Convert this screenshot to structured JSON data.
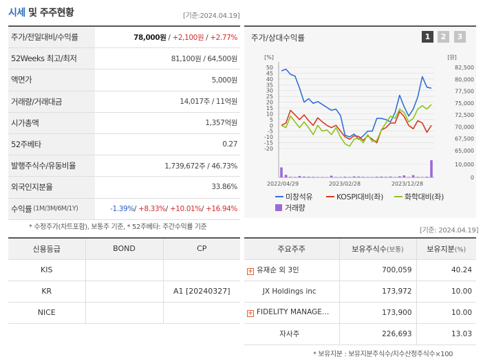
{
  "header": {
    "title_main": "시세",
    "title_rest": " 및 주주현황",
    "base_date": "[기준:2024.04.19]"
  },
  "quote": {
    "rows": [
      {
        "key": "주가/전일대비/수익률",
        "sub": "",
        "price": "78,000원",
        "sep1": " / ",
        "change": "+2,100원",
        "sep2": " / ",
        "pct": "+2.77%"
      },
      {
        "key": "52Weeks 최고/최저",
        "sub": "",
        "value": "81,100원 / 64,500원"
      },
      {
        "key": "액면가",
        "sub": "",
        "value": "5,000원"
      },
      {
        "key": "거래량/거래대금",
        "sub": "",
        "value": "14,017주 / 11억원"
      },
      {
        "key": "시가총액",
        "sub": "",
        "value": "1,357억원"
      },
      {
        "key": "52주베타",
        "sub": "",
        "value": "0.27"
      },
      {
        "key": "발행주식수/유동비율",
        "sub": "",
        "value": "1,739,672주 / 46.73%"
      },
      {
        "key": "외국인지분율",
        "sub": "",
        "value": "33.86%"
      }
    ],
    "returns": {
      "key": "수익률",
      "sub": "(1M/3M/6M/1Y)",
      "v1": "-1.39%",
      "v2": "+8.33%",
      "v3": "+10.01%",
      "v4": "+16.94%",
      "sep": "/ "
    },
    "note": "* 수정주가(차트포함), 보통주 기준, * 52주베타: 주간수익률 기준"
  },
  "chart": {
    "title": "주가/상대수익률",
    "buttons": [
      "1",
      "2",
      "3"
    ],
    "left_unit": "[%]",
    "right_unit": "[원]",
    "legend": {
      "s1": "미창석유",
      "s2": "KOSPI대비(좌)",
      "s3": "화학대비(좌)",
      "s4": "거래량"
    },
    "colors": {
      "s1": "#2f6fd6",
      "s2": "#d23a1f",
      "s3": "#8cc41a",
      "volume": "#9b6ad6",
      "grid": "#dcdcdc"
    }
  },
  "chart_data": {
    "type": "line",
    "x_labels": [
      "2022/04/29",
      "2023/02/28",
      "2023/12/28"
    ],
    "y_left": {
      "label": "[%]",
      "ticks": [
        "50",
        "45",
        "40",
        "35",
        "30",
        "25",
        "20",
        "15",
        "10",
        "5",
        "0",
        "-5",
        "-10",
        "-15",
        "-20"
      ],
      "range": [
        -20,
        50
      ]
    },
    "y_right": {
      "label": "[원]",
      "ticks": [
        "82,500",
        "80,000",
        "77,500",
        "75,000",
        "72,500",
        "70,000",
        "67,500",
        "65,000"
      ],
      "range": [
        65000,
        82500
      ]
    },
    "volume_axis": {
      "ticks": [
        "10,000",
        "0"
      ],
      "range": [
        0,
        12000
      ]
    },
    "series": [
      {
        "name": "미창석유",
        "values": [
          47,
          48.5,
          44,
          42.5,
          32,
          20,
          23,
          19,
          20.5,
          18,
          15.5,
          13,
          14,
          8.5,
          -8.5,
          -10,
          -7.5,
          -12,
          -9,
          -5,
          -5,
          6,
          6,
          5,
          3,
          11,
          26,
          16,
          8,
          14,
          24.5,
          42,
          33,
          32
        ]
      },
      {
        "name": "KOSPI대비(좌)",
        "values": [
          0,
          2,
          13,
          9,
          5,
          9,
          4,
          0,
          6.5,
          3,
          0,
          -2,
          0,
          -5,
          -10,
          -12,
          -9,
          -9.5,
          -13,
          -9,
          -12,
          -15,
          -4,
          -2,
          2,
          2,
          12,
          7.5,
          0,
          -3,
          4,
          2,
          -6,
          0
        ]
      },
      {
        "name": "화학대비(좌)",
        "values": [
          0,
          -2,
          8,
          3,
          -2,
          3,
          -2,
          -8,
          0,
          -5,
          -4,
          -8,
          -2,
          -10,
          -16,
          -18,
          -12,
          -11,
          -15,
          -8,
          -14,
          -13,
          -4,
          2,
          8,
          6,
          14,
          11,
          3,
          6,
          14,
          17,
          14,
          18
        ]
      },
      {
        "name": "거래량",
        "values": [
          7000,
          1800,
          400,
          300,
          1000,
          600,
          500,
          400,
          300,
          300,
          200,
          1200,
          300,
          300,
          500,
          300,
          700,
          600,
          400,
          300,
          300,
          500,
          600,
          400,
          600,
          300,
          800,
          1400,
          300,
          1600,
          400,
          300,
          500,
          12000
        ]
      }
    ]
  },
  "credit": {
    "headers": [
      "신용등급",
      "BOND",
      "CP"
    ],
    "rows": [
      [
        "KIS",
        "",
        ""
      ],
      [
        "KR",
        "",
        "A1 [20240327]"
      ],
      [
        "NICE",
        "",
        ""
      ]
    ]
  },
  "holders": {
    "base_date": "[기준: 2024.04.19]",
    "headers": {
      "name": "주요주주",
      "shares": "보유주식수",
      "shares_unit": "(보통)",
      "ratio": "보유지분",
      "ratio_unit": "(%)"
    },
    "rows": [
      {
        "name": "유재순 외 3인",
        "shares": "700,059",
        "ratio": "40.24",
        "expand": true
      },
      {
        "name": "JX Holdings inc",
        "shares": "173,972",
        "ratio": "10.00",
        "expand": false
      },
      {
        "name": "FIDELITY MANAGEM…",
        "shares": "173,900",
        "ratio": "10.00",
        "expand": true
      },
      {
        "name": "자사주",
        "shares": "226,693",
        "ratio": "13.03",
        "expand": false
      }
    ],
    "note": "* 보유지분 : 보유지분주식수/지수산정주식수×100",
    "expand_symbol": "+"
  }
}
